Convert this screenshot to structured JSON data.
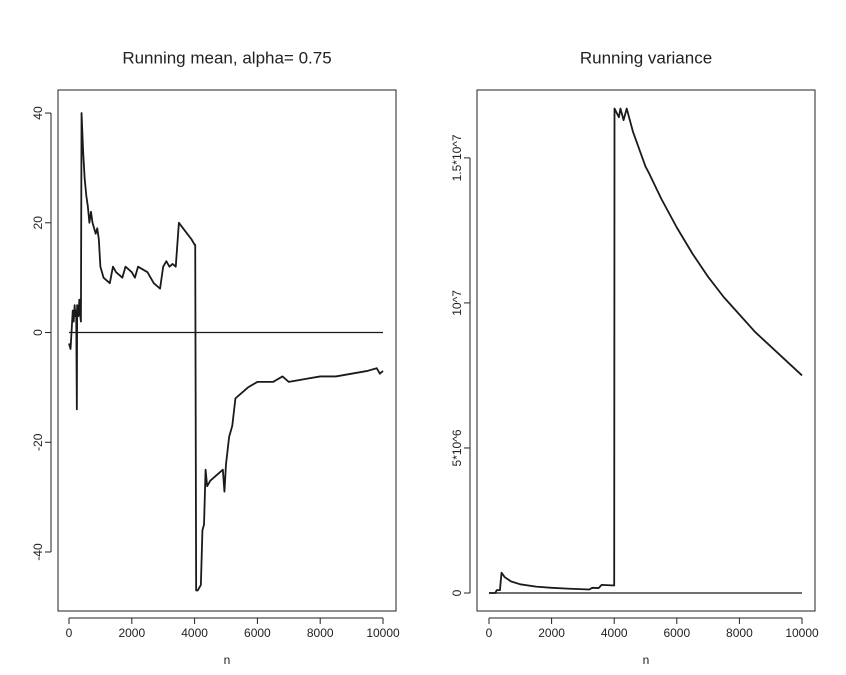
{
  "chart_data": [
    {
      "type": "line",
      "title": "Running mean,  alpha= 0.75",
      "x_label": "n",
      "color": "#1a1a1a",
      "hline": 0,
      "xlim": [
        -350,
        10414
      ],
      "ylim": [
        -50.75,
        44.2
      ],
      "xticks": [
        0,
        2000,
        4000,
        6000,
        8000,
        10000
      ],
      "yticks": [
        -40,
        -20,
        0,
        20,
        40
      ],
      "x": [
        0,
        50,
        80,
        120,
        150,
        180,
        200,
        230,
        250,
        260,
        300,
        330,
        360,
        380,
        400,
        450,
        500,
        550,
        600,
        650,
        700,
        750,
        800,
        850,
        900,
        950,
        1000,
        1100,
        1300,
        1400,
        1500,
        1700,
        1800,
        2000,
        2100,
        2200,
        2500,
        2700,
        2900,
        3000,
        3100,
        3200,
        3300,
        3400,
        3500,
        3700,
        3900,
        4000,
        4020,
        4050,
        4100,
        4200,
        4250,
        4300,
        4350,
        4400,
        4500,
        4700,
        4900,
        4950,
        5000,
        5100,
        5200,
        5300,
        5500,
        5700,
        6000,
        6500,
        6800,
        7000,
        7500,
        8000,
        8500,
        9000,
        9500,
        9800,
        9900,
        10000
      ],
      "values": [
        -2,
        -3,
        0,
        4,
        2,
        5,
        3,
        4,
        -14,
        5,
        3,
        6,
        3,
        2,
        40,
        33,
        28,
        25,
        23,
        20,
        22,
        20,
        19,
        18,
        19,
        17,
        12,
        10,
        9,
        12,
        11,
        10,
        12,
        11,
        10,
        12,
        11,
        9,
        8,
        12,
        13,
        12,
        12.5,
        12,
        20,
        18.5,
        17,
        16,
        16,
        -47,
        -47,
        -46,
        -36,
        -35,
        -25,
        -28,
        -27,
        -26,
        -25,
        -29,
        -24,
        -19,
        -17,
        -12,
        -11,
        -10,
        -9,
        -9,
        -8,
        -9,
        -8.5,
        -8,
        -8,
        -7.5,
        -7,
        -6.5,
        -7.5,
        -7
      ]
    },
    {
      "type": "line",
      "title": "Running variance",
      "x_label": "n",
      "color": "#1a1a1a",
      "hline": 0,
      "xlim": [
        -383,
        10415
      ],
      "ylim": [
        -620000,
        17340000
      ],
      "xticks": [
        0,
        2000,
        4000,
        6000,
        8000,
        10000
      ],
      "yticks": [
        0,
        {
          "value": 5000000,
          "label": "5*10^6"
        },
        {
          "value": 10000000,
          "label": "10^7"
        },
        {
          "value": 15000000,
          "label": "1.5*10^7"
        }
      ],
      "x": [
        0,
        200,
        250,
        350,
        400,
        500,
        700,
        1000,
        1500,
        2000,
        2500,
        3000,
        3200,
        3300,
        3500,
        3600,
        4000,
        4010,
        4150,
        4200,
        4300,
        4400,
        4600,
        5000,
        5100,
        5500,
        6000,
        6500,
        7000,
        7500,
        8000,
        8500,
        9000,
        9500,
        10000
      ],
      "values": [
        0,
        0,
        100000,
        100000,
        700000,
        550000,
        400000,
        300000,
        220000,
        180000,
        150000,
        130000,
        120000,
        180000,
        170000,
        280000,
        260000,
        16700000,
        16400000,
        16700000,
        16300000,
        16700000,
        15900000,
        14700000,
        14500000,
        13600000,
        12600000,
        11700000,
        10900000,
        10200000,
        9600000,
        9000000,
        8500000,
        8000000,
        7500000
      ]
    }
  ]
}
